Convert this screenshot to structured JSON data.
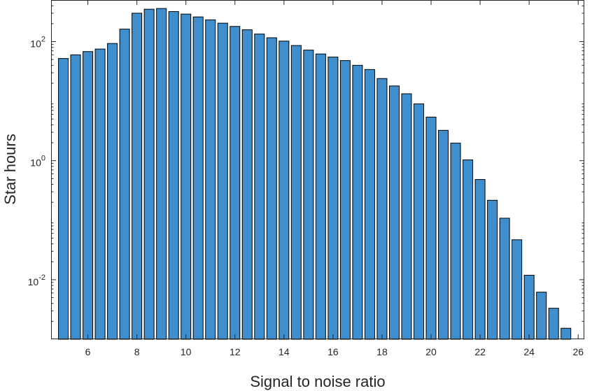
{
  "colors": {
    "bar_fill": "#3f8fce",
    "bar_edge": "#000000",
    "axis": "#262626",
    "background": "#ffffff"
  },
  "chart_data": {
    "type": "bar",
    "title": "",
    "xlabel": "Signal to noise ratio",
    "ylabel": "Star hours",
    "yscale": "log",
    "xlim": [
      4.5,
      26.25
    ],
    "ylim": [
      0.001,
      500
    ],
    "xticks": [
      6,
      8,
      10,
      12,
      14,
      16,
      18,
      20,
      22,
      24,
      26
    ],
    "yticks": [
      {
        "value": 100,
        "base": "10",
        "exp": "2"
      },
      {
        "value": 1,
        "base": "10",
        "exp": "0"
      },
      {
        "value": 0.01,
        "base": "10",
        "exp": "-2"
      }
    ],
    "grid": false,
    "box": true,
    "x": [
      5,
      5.5,
      6,
      6.5,
      7,
      7.5,
      8,
      8.5,
      9,
      9.5,
      10,
      10.5,
      11,
      11.5,
      12,
      12.5,
      13,
      13.5,
      14,
      14.5,
      15,
      15.5,
      16,
      16.5,
      17,
      17.5,
      18,
      18.5,
      19,
      19.5,
      20,
      20.5,
      21,
      21.5,
      22,
      22.5,
      23,
      23.5,
      24,
      24.5,
      25,
      25.5
    ],
    "values": [
      52,
      60,
      68,
      75,
      93,
      162,
      300,
      350,
      360,
      320,
      290,
      260,
      232,
      204,
      180,
      158,
      134,
      116,
      102,
      86,
      72,
      62,
      55,
      48,
      40,
      34,
      24,
      18,
      13.3,
      9.0,
      5.4,
      3.23,
      1.97,
      1.03,
      0.483,
      0.216,
      0.108,
      0.0469,
      0.0119,
      0.00618,
      0.00332,
      0.00153
    ]
  }
}
